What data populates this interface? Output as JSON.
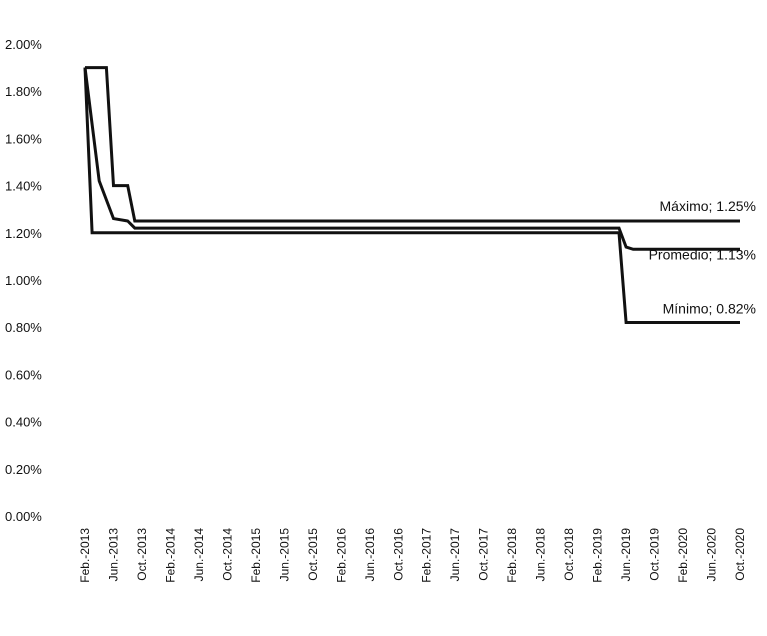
{
  "chart_data": {
    "type": "line",
    "title": "",
    "xlabel": "",
    "ylabel": "",
    "ylim": [
      0,
      0.02
    ],
    "y_ticks": [
      "0.00%",
      "0.20%",
      "0.40%",
      "0.60%",
      "0.80%",
      "1.00%",
      "1.20%",
      "1.40%",
      "1.60%",
      "1.80%",
      "2.00%"
    ],
    "x_tick_labels": [
      "Feb.-2013",
      "Jun.-2013",
      "Oct.-2013",
      "Feb.-2014",
      "Jun.-2014",
      "Oct.-2014",
      "Feb.-2015",
      "Jun.-2015",
      "Oct.-2015",
      "Feb.-2016",
      "Jun.-2016",
      "Oct.-2016",
      "Feb.-2017",
      "Jun.-2017",
      "Oct.-2017",
      "Feb.-2018",
      "Jun.-2018",
      "Oct.-2018",
      "Feb.-2019",
      "Jun.-2019",
      "Oct.-2019",
      "Feb.-2020",
      "Jun.-2020",
      "Oct.-2020"
    ],
    "grid": false,
    "legend": "none",
    "series": [
      {
        "key": "maximo",
        "points": [
          [
            "2013-02",
            0.019
          ],
          [
            "2013-05",
            0.019
          ],
          [
            "2013-06",
            0.014
          ],
          [
            "2013-08",
            0.014
          ],
          [
            "2013-09",
            0.0125
          ],
          [
            "2020-10",
            0.0125
          ]
        ]
      },
      {
        "key": "promedio",
        "points": [
          [
            "2013-02",
            0.019
          ],
          [
            "2013-04",
            0.0142
          ],
          [
            "2013-06",
            0.0126
          ],
          [
            "2013-08",
            0.0125
          ],
          [
            "2013-09",
            0.0122
          ],
          [
            "2019-05",
            0.0122
          ],
          [
            "2019-06",
            0.0114
          ],
          [
            "2019-07",
            0.0113
          ],
          [
            "2020-10",
            0.0113
          ]
        ]
      },
      {
        "key": "minimo",
        "points": [
          [
            "2013-02",
            0.019
          ],
          [
            "2013-03",
            0.012
          ],
          [
            "2019-05",
            0.012
          ],
          [
            "2019-06",
            0.0082
          ],
          [
            "2020-10",
            0.0082
          ]
        ]
      }
    ],
    "annotations": [
      {
        "series": "maximo",
        "text": "Máximo; 1.25%"
      },
      {
        "series": "promedio",
        "text": "Promedio; 1.13%"
      },
      {
        "series": "minimo",
        "text": "Mínimo; 0.82%"
      }
    ],
    "colors": {
      "line": "#111111",
      "text": "#111111"
    }
  }
}
